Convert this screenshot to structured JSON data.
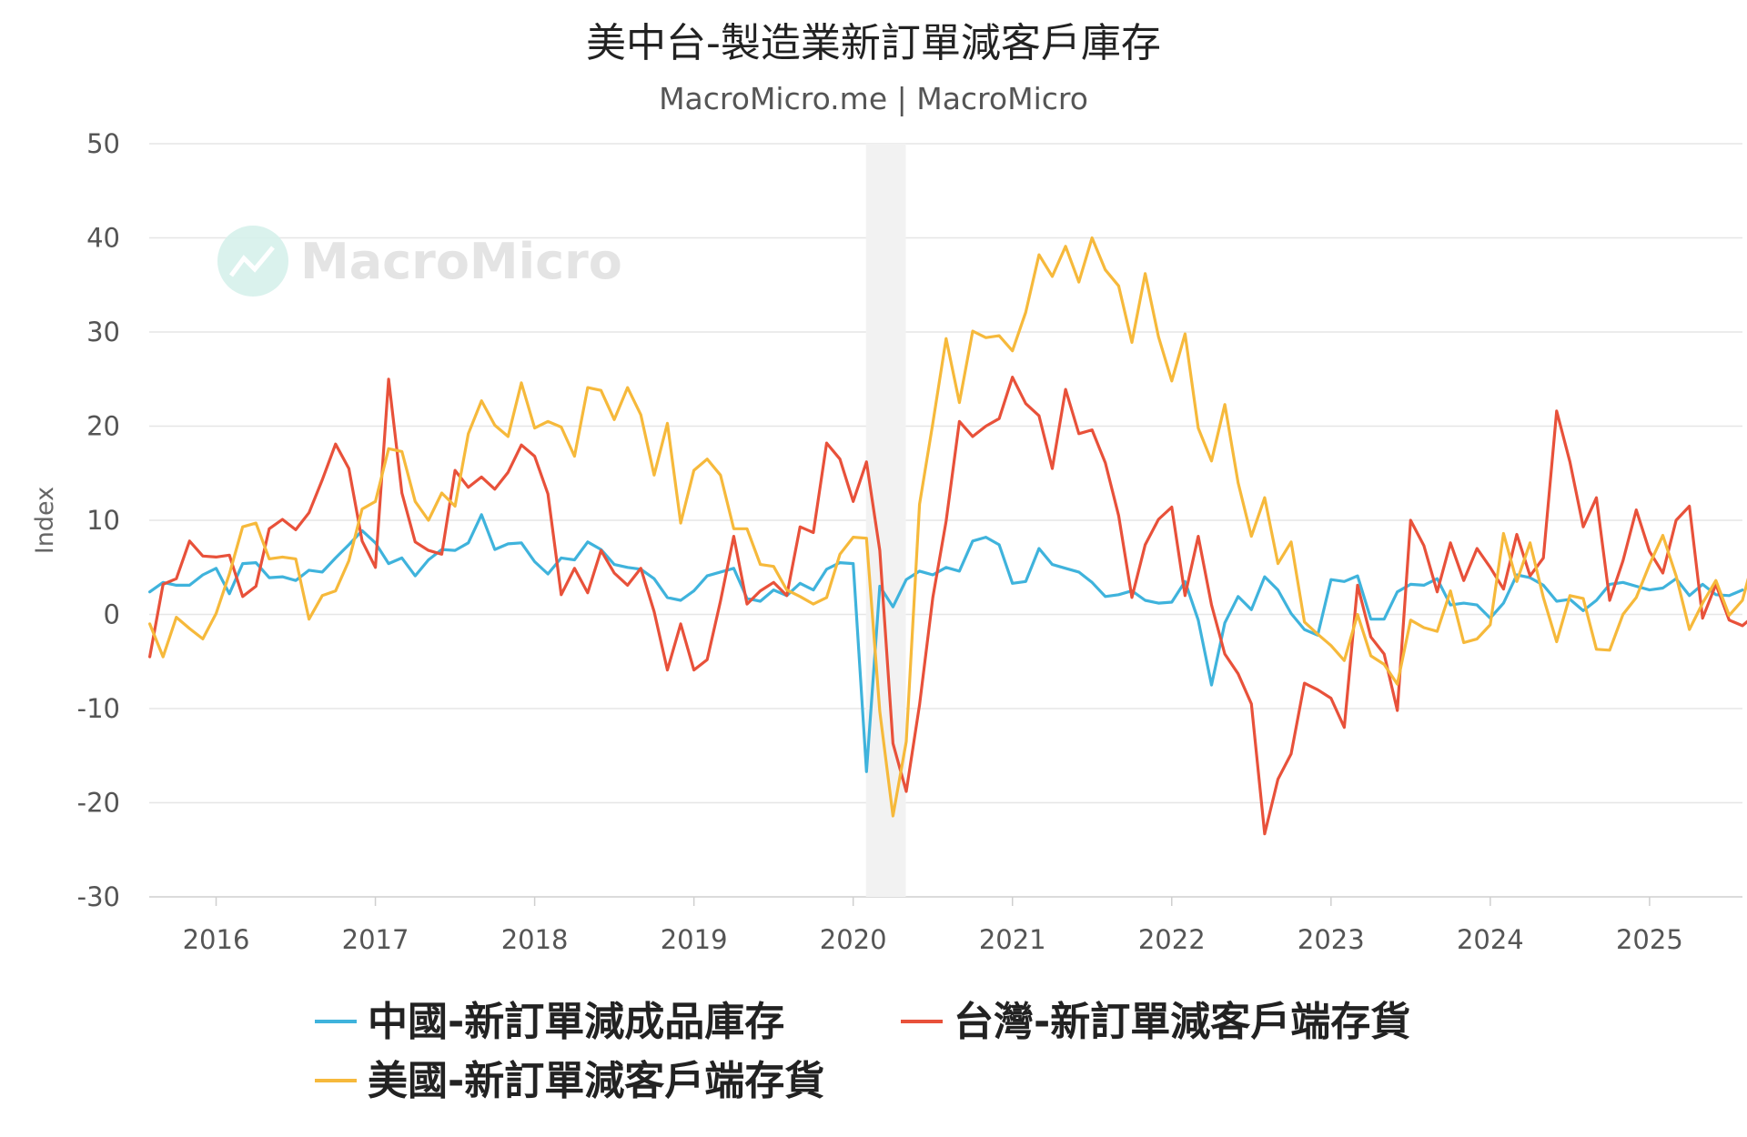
{
  "chart_data": {
    "type": "line",
    "title": "美中台-製造業新訂單減客戶庫存",
    "subtitle": "MacroMicro.me | MacroMicro",
    "ylabel": "Index",
    "ylim": [
      -30,
      50
    ],
    "yticks": [
      "50",
      "40",
      "30",
      "20",
      "10",
      "0",
      "-10",
      "-20",
      "-30"
    ],
    "x_ticks": [
      "2016",
      "2017",
      "2018",
      "2019",
      "2020",
      "2021",
      "2022",
      "2023",
      "2024",
      "2025"
    ],
    "xlim": [
      2015.58,
      2025.5833
    ],
    "grid": true,
    "legend_position": "bottom",
    "shaded_period": [
      2020.08,
      2020.33
    ],
    "watermark": "MacroMicro",
    "series": [
      {
        "name": "中國-新訂單減成品庫存",
        "color": "#3fb3dc",
        "start": 2015.5833,
        "values": [
          2.4,
          3.4,
          3.1,
          3.1,
          4.2,
          4.9,
          2.2,
          5.4,
          5.5,
          3.9,
          4.0,
          3.6,
          4.7,
          4.5,
          6.0,
          7.4,
          8.9,
          7.6,
          5.4,
          6.0,
          4.1,
          5.8,
          6.9,
          6.8,
          7.6,
          10.6,
          6.9,
          7.5,
          7.6,
          5.6,
          4.3,
          6.0,
          5.8,
          7.7,
          6.9,
          5.3,
          5.0,
          4.8,
          3.8,
          1.8,
          1.5,
          2.5,
          4.1,
          4.5,
          4.9,
          1.7,
          1.4,
          2.6,
          2.0,
          3.3,
          2.6,
          4.8,
          5.5,
          5.4,
          -16.7,
          3.0,
          0.8,
          3.7,
          4.6,
          4.2,
          5.0,
          4.6,
          7.8,
          8.2,
          7.4,
          3.3,
          3.5,
          7.0,
          5.3,
          4.9,
          4.5,
          3.4,
          1.9,
          2.1,
          2.5,
          1.5,
          1.2,
          1.3,
          3.5,
          -0.6,
          -7.5,
          -0.9,
          1.9,
          0.5,
          4.0,
          2.6,
          0.1,
          -1.6,
          -2.2,
          3.7,
          3.5,
          4.1,
          -0.5,
          -0.5,
          2.4,
          3.2,
          3.1,
          3.8,
          1.0,
          1.2,
          1.0,
          -0.4,
          1.2,
          4.2,
          3.9,
          3.1,
          1.4,
          1.6,
          0.4,
          1.5,
          3.2,
          3.4,
          3.0,
          2.6,
          2.8,
          3.8,
          2.0,
          3.2,
          2.1,
          2.0,
          2.6
        ]
      },
      {
        "name": "台灣-新訂單減客戶端存貨",
        "color": "#e8513a",
        "start": 2015.5833,
        "values": [
          -4.5,
          3.2,
          3.8,
          7.8,
          6.2,
          6.1,
          6.3,
          1.9,
          3.0,
          9.1,
          10.1,
          9.0,
          10.8,
          14.3,
          18.1,
          15.5,
          7.8,
          5.0,
          25.0,
          12.9,
          7.7,
          6.8,
          6.4,
          15.3,
          13.5,
          14.6,
          13.3,
          15.1,
          18.0,
          16.8,
          12.8,
          2.1,
          4.9,
          2.3,
          6.8,
          4.4,
          3.1,
          4.9,
          0.3,
          -5.9,
          -1.0,
          -5.9,
          -4.8,
          1.4,
          8.3,
          1.1,
          2.5,
          3.4,
          2.0,
          9.3,
          8.7,
          18.2,
          16.5,
          12.0,
          16.2,
          6.8,
          -13.7,
          -18.8,
          -9.6,
          1.8,
          9.9,
          20.5,
          18.9,
          20.0,
          20.8,
          25.2,
          22.4,
          21.1,
          15.5,
          23.9,
          19.2,
          19.6,
          16.1,
          10.5,
          1.8,
          7.4,
          10.1,
          11.4,
          2.0,
          8.3,
          1.0,
          -4.2,
          -6.3,
          -9.5,
          -23.3,
          -17.5,
          -14.8,
          -7.3,
          -8.0,
          -8.9,
          -12.0,
          3.1,
          -2.4,
          -4.2,
          -10.2,
          10.0,
          7.3,
          2.4,
          7.6,
          3.6,
          7.0,
          5.0,
          2.7,
          8.5,
          4.1,
          6.0,
          21.6,
          16.2,
          9.3,
          12.4,
          1.5,
          5.7,
          11.1,
          6.7,
          4.4,
          10.0,
          11.5,
          -0.4,
          3.2,
          -0.6,
          -1.2,
          0.0
        ]
      },
      {
        "name": "美國-新訂單減客戶端存貨",
        "color": "#f6b93b",
        "start": 2015.5833,
        "values": [
          -1.0,
          -4.5,
          -0.3,
          -1.5,
          -2.6,
          0.1,
          4.3,
          9.3,
          9.7,
          5.9,
          6.1,
          5.9,
          -0.5,
          2.0,
          2.5,
          5.7,
          11.2,
          12.0,
          17.6,
          17.3,
          12.0,
          10.0,
          12.9,
          11.5,
          19.2,
          22.7,
          20.1,
          18.9,
          24.6,
          19.8,
          20.5,
          19.9,
          16.8,
          24.1,
          23.8,
          20.7,
          24.1,
          21.2,
          14.8,
          20.3,
          9.7,
          15.3,
          16.5,
          14.8,
          9.1,
          9.1,
          5.3,
          5.1,
          2.6,
          1.9,
          1.1,
          1.8,
          6.4,
          8.2,
          8.1,
          -10.3,
          -21.4,
          -13.5,
          11.7,
          20.3,
          29.3,
          22.5,
          30.1,
          29.4,
          29.6,
          28.0,
          32.1,
          38.2,
          35.9,
          39.1,
          35.3,
          40.0,
          36.6,
          34.9,
          28.9,
          36.2,
          29.5,
          24.8,
          29.8,
          19.8,
          16.3,
          22.3,
          14.0,
          8.3,
          12.4,
          5.4,
          7.7,
          -0.8,
          -2.1,
          -3.3,
          -4.9,
          0.0,
          -4.4,
          -5.3,
          -7.4,
          -0.6,
          -1.4,
          -1.8,
          2.5,
          -3.0,
          -2.6,
          -1.1,
          8.6,
          3.5,
          7.6,
          1.8,
          -2.9,
          2.0,
          1.7,
          -3.7,
          -3.8,
          0.0,
          1.8,
          5.3,
          8.4,
          4.1,
          -1.6,
          1.2,
          3.6,
          -0.1,
          1.5,
          6.8
        ]
      }
    ]
  }
}
